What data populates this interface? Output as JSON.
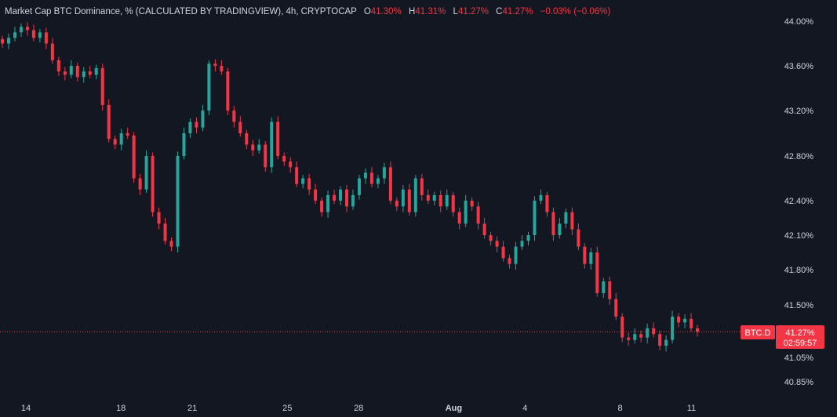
{
  "legend": {
    "title": "Market Cap BTC Dominance, % (CALCULATED BY TRADINGVIEW), 4h, CRYPTOCAP",
    "o_label": "O",
    "o_value": "41.30%",
    "h_label": "H",
    "h_value": "41.31%",
    "l_label": "L",
    "l_value": "41.27%",
    "c_label": "C",
    "c_value": "41.27%",
    "change": "−0.03% (−0.06%)"
  },
  "badges": {
    "symbol": "BTC.D",
    "price": "41.27%",
    "countdown": "02:59:57"
  },
  "colors": {
    "background": "#131722",
    "up": "#26a69a",
    "down": "#f23645",
    "text": "#d1d4dc"
  },
  "chart_data": {
    "type": "candlestick",
    "title": "Market Cap BTC Dominance, % (CALCULATED BY TRADINGVIEW), 4h, CRYPTOCAP",
    "y_axis_side": "right",
    "y_ticks": [
      44.0,
      43.6,
      43.2,
      42.8,
      42.4,
      42.1,
      41.8,
      41.5,
      41.05,
      40.85
    ],
    "y_tick_labels": [
      "44.00%",
      "43.60%",
      "43.20%",
      "42.80%",
      "42.40%",
      "42.10%",
      "41.80%",
      "41.50%",
      "41.05%",
      "40.85%"
    ],
    "x_tick_labels": [
      {
        "label": "14",
        "day": 14,
        "bold": false
      },
      {
        "label": "18",
        "day": 18,
        "bold": false
      },
      {
        "label": "21",
        "day": 21,
        "bold": false
      },
      {
        "label": "25",
        "day": 25,
        "bold": false
      },
      {
        "label": "28",
        "day": 28,
        "bold": false
      },
      {
        "label": "Aug",
        "day": 32,
        "bold": true
      },
      {
        "label": "4",
        "day": 35,
        "bold": false
      },
      {
        "label": "8",
        "day": 39,
        "bold": false
      },
      {
        "label": "11",
        "day": 42,
        "bold": false
      }
    ],
    "last_price": 41.27,
    "ohlc_tail": {
      "open": 41.3,
      "high": 41.31,
      "low": 41.27,
      "close": 41.27
    },
    "closes": [
      43.8,
      43.85,
      43.9,
      43.95,
      43.92,
      43.85,
      43.9,
      43.8,
      43.65,
      43.55,
      43.52,
      43.6,
      43.5,
      43.55,
      43.52,
      43.58,
      43.25,
      42.95,
      42.9,
      43.0,
      42.98,
      42.6,
      42.5,
      42.8,
      42.3,
      42.2,
      42.05,
      42.0,
      42.8,
      43.0,
      43.1,
      43.05,
      43.2,
      43.62,
      43.6,
      43.55,
      43.2,
      43.1,
      43.0,
      42.9,
      42.85,
      42.9,
      42.7,
      43.1,
      42.8,
      42.75,
      42.7,
      42.55,
      42.6,
      42.5,
      42.4,
      42.3,
      42.45,
      42.4,
      42.5,
      42.35,
      42.45,
      42.6,
      42.65,
      42.55,
      42.6,
      42.7,
      42.4,
      42.35,
      42.5,
      42.3,
      42.6,
      42.45,
      42.4,
      42.45,
      42.35,
      42.45,
      42.3,
      42.2,
      42.4,
      42.35,
      42.2,
      42.1,
      42.05,
      42.0,
      41.9,
      41.85,
      42.0,
      42.05,
      42.1,
      42.4,
      42.45,
      42.3,
      42.1,
      42.2,
      42.3,
      42.15,
      42.0,
      41.85,
      41.95,
      41.6,
      41.7,
      41.55,
      41.4,
      41.22,
      41.2,
      41.25,
      41.22,
      41.3,
      41.25,
      41.15,
      41.2,
      41.4,
      41.35,
      41.38,
      41.3,
      41.27
    ]
  }
}
